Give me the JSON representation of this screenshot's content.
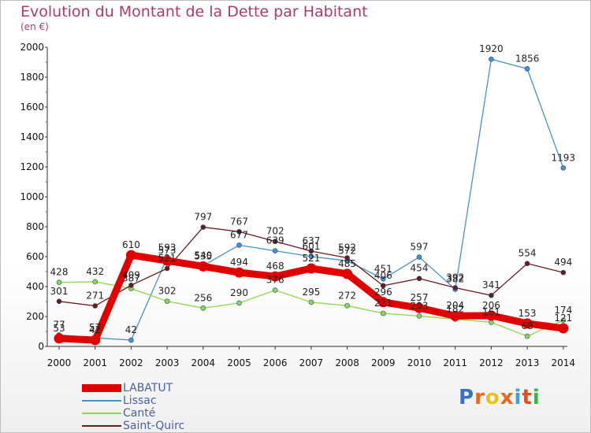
{
  "header": {
    "title": "Evolution du Montant de la Dette par Habitant",
    "unit": "(en €)"
  },
  "brand": {
    "name": "Proxiti",
    "letters": [
      "P",
      "r",
      "o",
      "x",
      "i",
      "t",
      "i"
    ],
    "colors": [
      "#3a6fc4",
      "#e8681a",
      "#e8c21a",
      "#e8681a",
      "#3aa0d8",
      "#e84a1a",
      "#3ab050"
    ]
  },
  "chart_data": {
    "type": "line",
    "x": [
      "2000",
      "2001",
      "2002",
      "2003",
      "2004",
      "2005",
      "2006",
      "2007",
      "2008",
      "2009",
      "2010",
      "2011",
      "2012",
      "2013",
      "2014"
    ],
    "ylim": [
      0,
      2000
    ],
    "yticks": [
      "0",
      "200",
      "400",
      "600",
      "800",
      "1000",
      "1200",
      "1400",
      "1600",
      "1800",
      "2000"
    ],
    "grid": false,
    "legend_position": "bottom-left",
    "series": [
      {
        "name": "LABATUT",
        "color": "#e10000",
        "values": [
          53,
          42,
          610,
          573,
          535,
          494,
          468,
          521,
          485,
          296,
          257,
          204,
          206,
          153,
          121
        ]
      },
      {
        "name": "Lissac",
        "color": "#4a90c8",
        "values": [
          77,
          57,
          42,
          593,
          540,
          677,
          639,
          601,
          572,
          451,
          597,
          382,
          1920,
          1856,
          1193
        ]
      },
      {
        "name": "Canté",
        "color": "#8fd650",
        "values": [
          428,
          432,
          387,
          302,
          256,
          290,
          376,
          295,
          272,
          221,
          203,
          182,
          161,
          68,
          174
        ]
      },
      {
        "name": "Saint-Quirc",
        "color": "#6b1a1a",
        "values": [
          301,
          271,
          409,
          521,
          797,
          767,
          702,
          637,
          592,
          406,
          454,
          392,
          341,
          554,
          494
        ]
      }
    ],
    "labels": [
      {
        "series": "LABATUT",
        "texts": [
          "53",
          "42",
          "610",
          "573",
          "535",
          "494",
          "468",
          "521",
          "485",
          "296",
          "257",
          "204",
          "206",
          "153",
          "121"
        ]
      },
      {
        "series": "Lissac",
        "texts": [
          "77",
          "57",
          "42",
          "593",
          "540",
          "677",
          "639",
          "601",
          "572",
          "451",
          "597",
          "382",
          "1920",
          "1856",
          "1193"
        ]
      },
      {
        "series": "Canté",
        "texts": [
          "428",
          "432",
          "387",
          "302",
          "256",
          "290",
          "376",
          "295",
          "272",
          "221",
          "203",
          "182",
          "161",
          "68",
          "174"
        ]
      },
      {
        "series": "Saint-Quirc",
        "texts": [
          "301",
          "271",
          "409",
          "521",
          "797",
          "767",
          "702",
          "637",
          "592",
          "406",
          "454",
          "392",
          "341",
          "554",
          "494"
        ]
      }
    ]
  }
}
